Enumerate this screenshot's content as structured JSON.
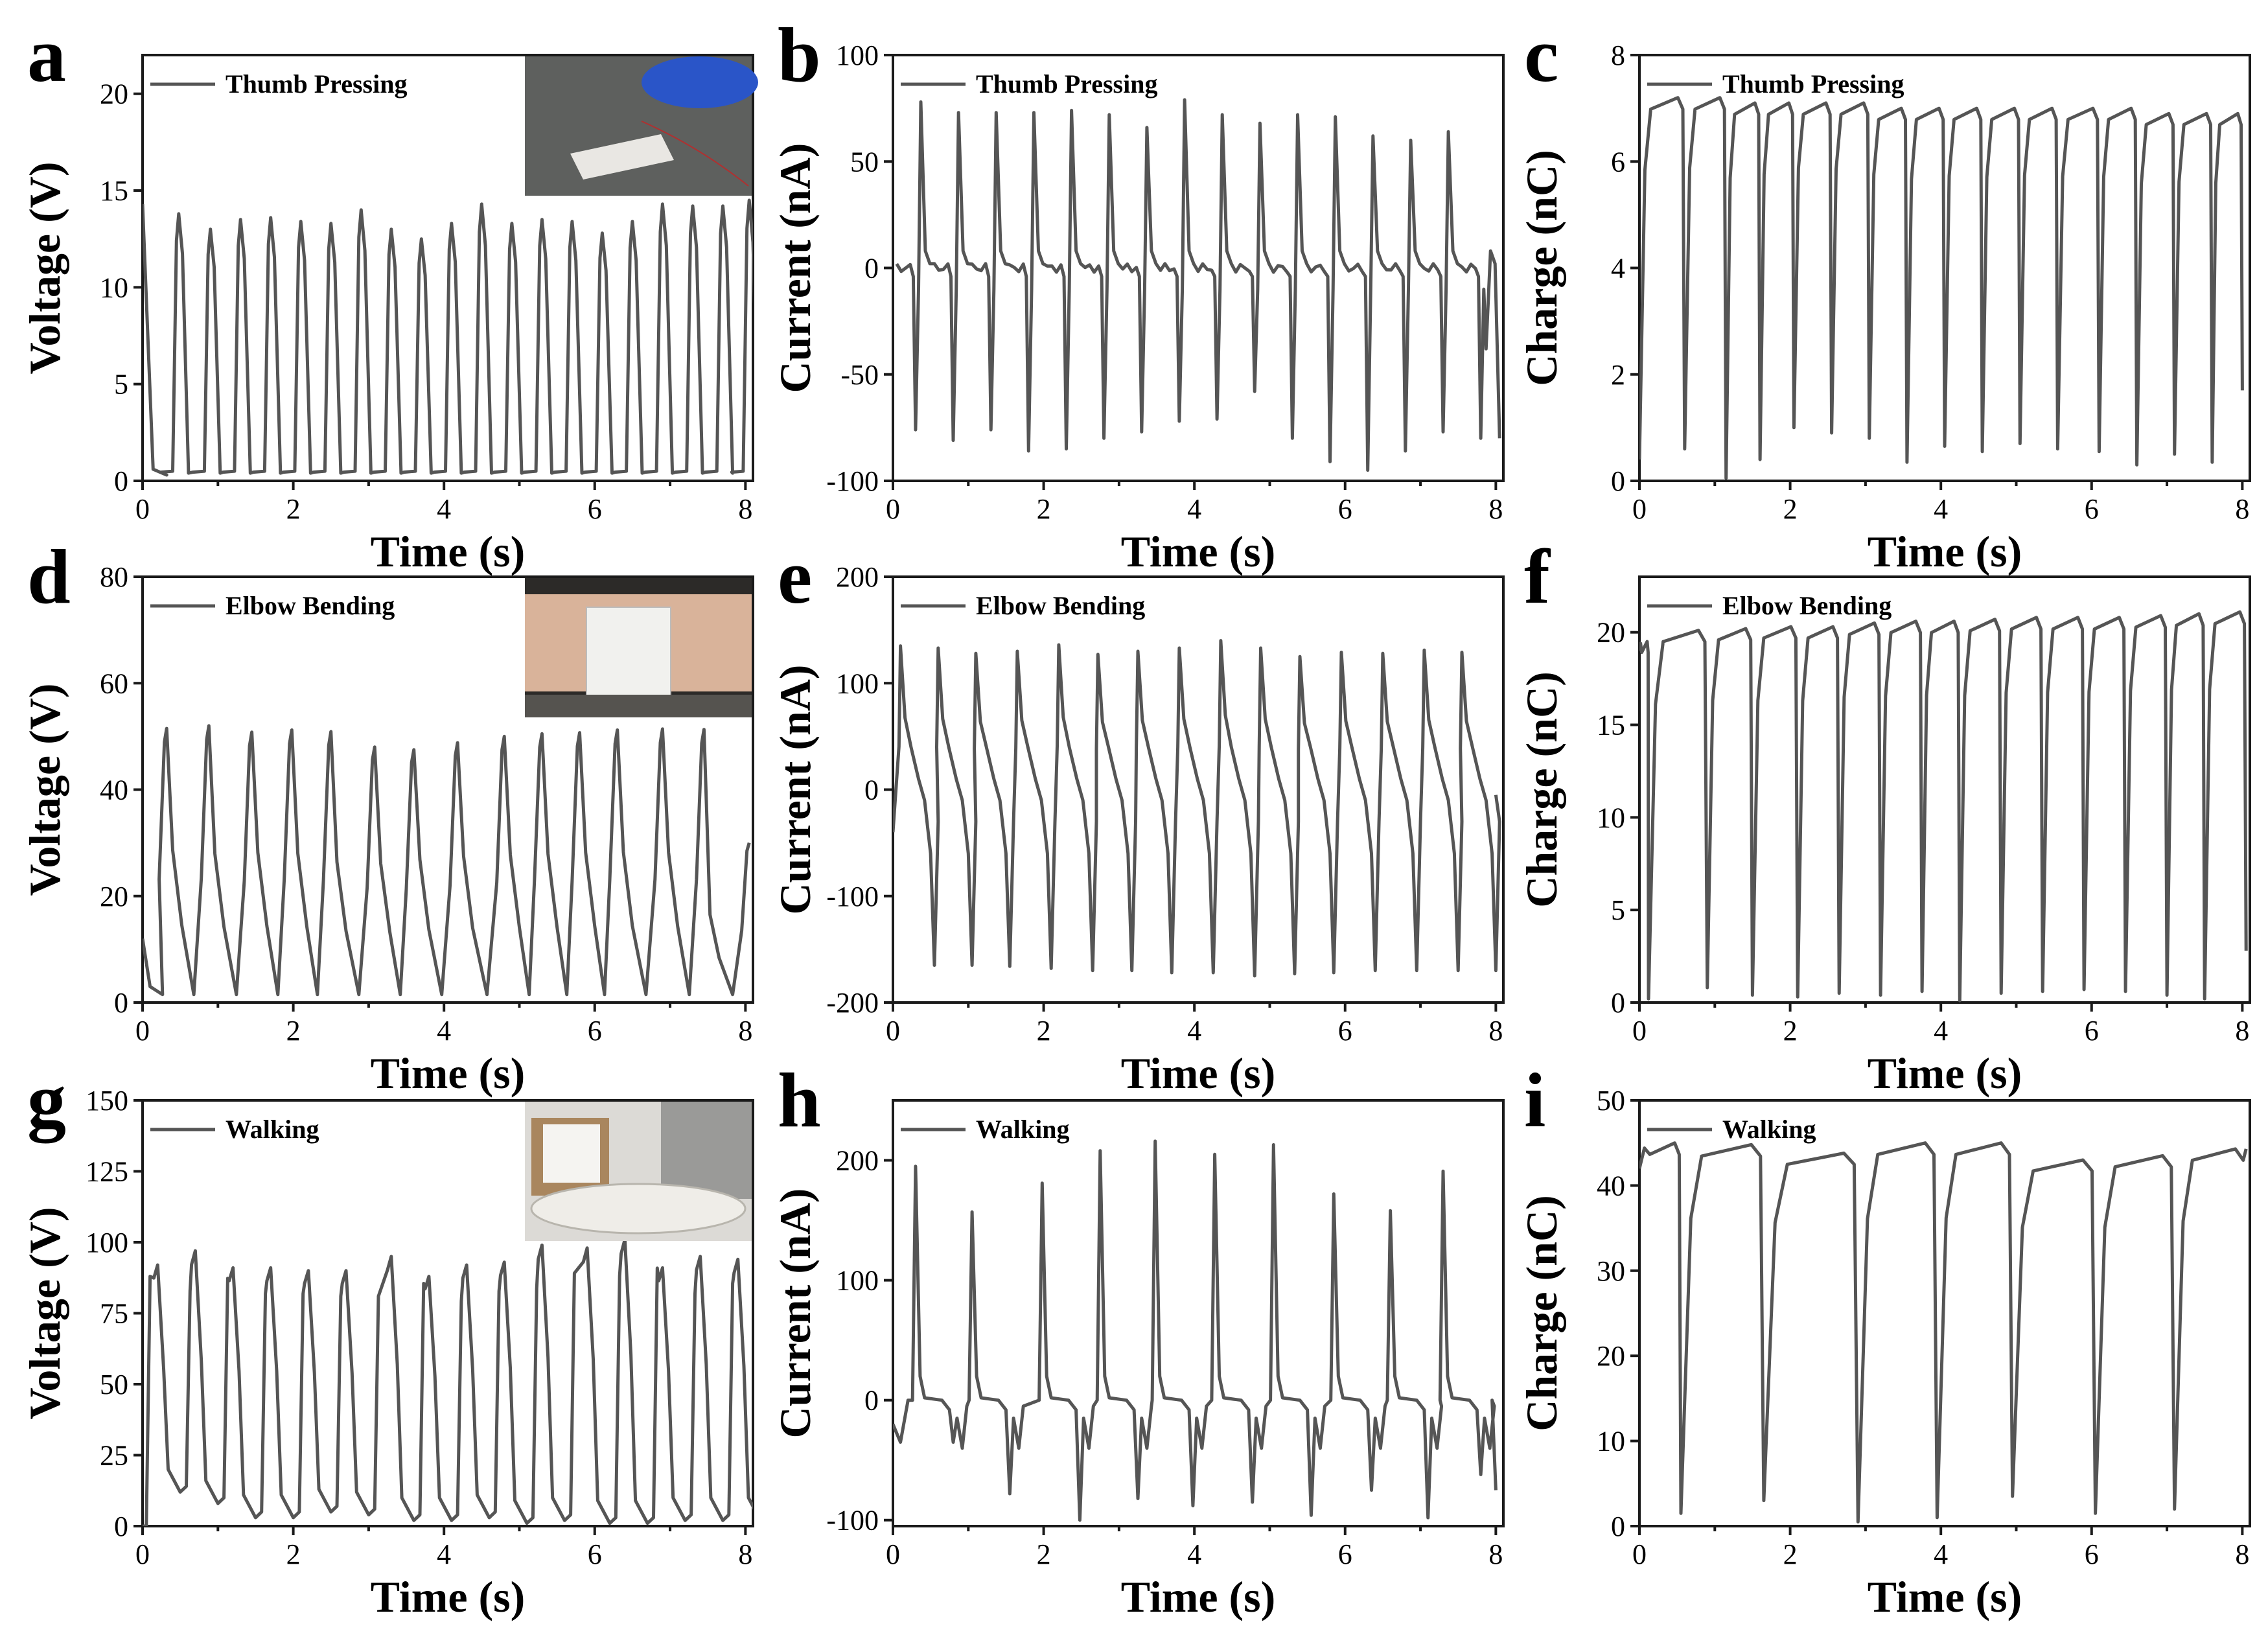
{
  "colors": {
    "series": "#555555",
    "axis": "#1a1a1a",
    "background": "#ffffff"
  },
  "chart_data": [
    {
      "panel": "a",
      "type": "line",
      "xlabel": "Time (s)",
      "ylabel": "Voltage (V)",
      "xlim": [
        0,
        8.1
      ],
      "ylim": [
        0,
        22
      ],
      "xticks": [
        0,
        2,
        4,
        6,
        8
      ],
      "yticks": [
        0,
        5,
        10,
        15,
        20
      ],
      "legend": "Thumb Pressing",
      "legend_position": "top-left",
      "inset_photo": "thumb-pressing-photo",
      "pattern": {
        "kind": "pulse",
        "baseline": 0.3,
        "duty": 0.55,
        "peaks": [
          [
            0.02,
            14.3
          ],
          [
            0.48,
            13.8
          ],
          [
            0.9,
            13.0
          ],
          [
            1.3,
            13.5
          ],
          [
            1.7,
            13.6
          ],
          [
            2.1,
            13.4
          ],
          [
            2.5,
            13.3
          ],
          [
            2.9,
            14.0
          ],
          [
            3.3,
            13.0
          ],
          [
            3.7,
            12.5
          ],
          [
            4.1,
            13.3
          ],
          [
            4.5,
            14.3
          ],
          [
            4.9,
            13.3
          ],
          [
            5.3,
            13.5
          ],
          [
            5.7,
            13.4
          ],
          [
            6.1,
            12.8
          ],
          [
            6.5,
            13.4
          ],
          [
            6.9,
            14.3
          ],
          [
            7.3,
            14.2
          ],
          [
            7.7,
            14.2
          ],
          [
            8.05,
            14.5
          ]
        ]
      }
    },
    {
      "panel": "b",
      "type": "line",
      "xlabel": "Time (s)",
      "ylabel": "Current (nA)",
      "xlim": [
        0,
        8.1
      ],
      "ylim": [
        -100,
        100
      ],
      "xticks": [
        0,
        2,
        4,
        6,
        8
      ],
      "yticks": [
        -100,
        -50,
        0,
        50,
        100
      ],
      "legend": "Thumb Pressing",
      "legend_position": "top-left",
      "pattern": {
        "kind": "spike",
        "baseline": 0,
        "events": [
          [
            0.35,
            -76,
            78
          ],
          [
            0.85,
            -81,
            73
          ],
          [
            1.35,
            -76,
            73
          ],
          [
            1.85,
            -86,
            73
          ],
          [
            2.35,
            -85,
            74
          ],
          [
            2.85,
            -80,
            72
          ],
          [
            3.35,
            -77,
            66
          ],
          [
            3.85,
            -72,
            79
          ],
          [
            4.35,
            -71,
            72
          ],
          [
            4.85,
            -58,
            68
          ],
          [
            5.35,
            -80,
            72
          ],
          [
            5.85,
            -91,
            71
          ],
          [
            6.35,
            -95,
            62
          ],
          [
            6.85,
            -86,
            60
          ],
          [
            7.35,
            -77,
            64
          ],
          [
            7.85,
            -80,
            -38
          ]
        ]
      }
    },
    {
      "panel": "c",
      "type": "line",
      "xlabel": "Time (s)",
      "ylabel": "Charge (nC)",
      "xlim": [
        0,
        8.1
      ],
      "ylim": [
        0,
        8
      ],
      "xticks": [
        0,
        2,
        4,
        6,
        8
      ],
      "yticks": [
        0,
        2,
        4,
        6,
        8
      ],
      "legend": "Thumb Pressing",
      "legend_position": "top-left",
      "pattern": {
        "kind": "sawtooth",
        "cycles": [
          [
            0.0,
            0.4,
            7.2
          ],
          [
            0.6,
            0.6,
            7.2
          ],
          [
            1.15,
            0.05,
            7.1
          ],
          [
            1.6,
            0.4,
            7.1
          ],
          [
            2.05,
            1.0,
            7.1
          ],
          [
            2.55,
            0.9,
            7.1
          ],
          [
            3.05,
            0.8,
            7.0
          ],
          [
            3.55,
            0.35,
            7.0
          ],
          [
            4.05,
            0.65,
            7.0
          ],
          [
            4.55,
            0.55,
            7.0
          ],
          [
            5.05,
            0.7,
            7.0
          ],
          [
            5.55,
            0.6,
            7.0
          ],
          [
            6.1,
            0.55,
            7.0
          ],
          [
            6.6,
            0.3,
            6.9
          ],
          [
            7.1,
            0.5,
            6.9
          ],
          [
            7.6,
            0.35,
            6.9
          ]
        ],
        "end": [
          8.0,
          1.7
        ]
      }
    },
    {
      "panel": "d",
      "type": "line",
      "xlabel": "Time (s)",
      "ylabel": "Voltage (V)",
      "xlim": [
        0,
        8.1
      ],
      "ylim": [
        0,
        80
      ],
      "xticks": [
        0,
        2,
        4,
        6,
        8
      ],
      "yticks": [
        0,
        20,
        40,
        60,
        80
      ],
      "legend": "Elbow Bending",
      "legend_position": "top-left",
      "inset_photo": "elbow-bending-photo",
      "pattern": {
        "kind": "peaks",
        "baseline": 1.5,
        "peaks": [
          [
            0.32,
            51.5
          ],
          [
            0.88,
            52.0
          ],
          [
            1.45,
            50.8
          ],
          [
            1.98,
            51.2
          ],
          [
            2.5,
            50.9
          ],
          [
            3.08,
            48.0
          ],
          [
            3.6,
            47.5
          ],
          [
            4.18,
            48.8
          ],
          [
            4.8,
            50.0
          ],
          [
            5.3,
            50.5
          ],
          [
            5.8,
            50.7
          ],
          [
            6.3,
            51.2
          ],
          [
            6.9,
            51.4
          ],
          [
            7.45,
            51.3
          ],
          [
            8.05,
            30.0
          ]
        ]
      }
    },
    {
      "panel": "e",
      "type": "line",
      "xlabel": "Time (s)",
      "ylabel": "Current (nA)",
      "xlim": [
        0,
        8.1
      ],
      "ylim": [
        -200,
        200
      ],
      "xticks": [
        0,
        2,
        4,
        6,
        8
      ],
      "yticks": [
        -200,
        -100,
        0,
        100,
        200
      ],
      "legend": "Elbow Bending",
      "legend_position": "top-left",
      "pattern": {
        "kind": "asym-spike",
        "baseline": 0,
        "events": [
          [
            0.1,
            135,
            -165
          ],
          [
            0.6,
            133,
            -165
          ],
          [
            1.1,
            128,
            -166
          ],
          [
            1.65,
            130,
            -168
          ],
          [
            2.2,
            136,
            -170
          ],
          [
            2.72,
            127,
            -170
          ],
          [
            3.25,
            130,
            -172
          ],
          [
            3.8,
            133,
            -172
          ],
          [
            4.35,
            140,
            -175
          ],
          [
            4.88,
            133,
            -173
          ],
          [
            5.4,
            125,
            -172
          ],
          [
            5.95,
            129,
            -170
          ],
          [
            6.5,
            128,
            -170
          ],
          [
            7.05,
            131,
            -170
          ],
          [
            7.55,
            129,
            -170
          ]
        ],
        "end": [
          8.0,
          -5
        ]
      }
    },
    {
      "panel": "f",
      "type": "line",
      "xlabel": "Time (s)",
      "ylabel": "Charge (nC)",
      "xlim": [
        0,
        8.1
      ],
      "ylim": [
        0,
        23
      ],
      "xticks": [
        0,
        2,
        4,
        6,
        8
      ],
      "yticks": [
        0,
        5,
        10,
        15,
        20
      ],
      "legend": "Elbow Bending",
      "legend_position": "top-left",
      "pattern": {
        "kind": "sawtooth",
        "cycles": [
          [
            0.0,
            19.0,
            19.5
          ],
          [
            0.12,
            0.2,
            20.1
          ],
          [
            0.9,
            0.8,
            20.2
          ],
          [
            1.5,
            0.4,
            20.3
          ],
          [
            2.1,
            0.3,
            20.3
          ],
          [
            2.65,
            0.5,
            20.5
          ],
          [
            3.2,
            0.4,
            20.6
          ],
          [
            3.75,
            0.6,
            20.6
          ],
          [
            4.25,
            0.1,
            20.7
          ],
          [
            4.8,
            0.5,
            20.8
          ],
          [
            5.35,
            0.6,
            20.8
          ],
          [
            5.9,
            0.7,
            20.8
          ],
          [
            6.45,
            0.6,
            20.9
          ],
          [
            7.0,
            0.4,
            21.0
          ],
          [
            7.5,
            0.2,
            21.1
          ]
        ],
        "end": [
          8.05,
          2.8
        ]
      }
    },
    {
      "panel": "g",
      "type": "line",
      "xlabel": "Time (s)",
      "ylabel": "Voltage (V)",
      "xlim": [
        0,
        8.1
      ],
      "ylim": [
        0,
        150
      ],
      "xticks": [
        0,
        2,
        4,
        6,
        8
      ],
      "yticks": [
        0,
        25,
        50,
        75,
        100,
        125,
        150
      ],
      "legend": "Walking",
      "legend_position": "top-left",
      "inset_photo": "walking-shoe-photo",
      "pattern": {
        "kind": "pulse-dip",
        "cycles": [
          [
            0.2,
            92,
            12
          ],
          [
            0.7,
            97,
            8
          ],
          [
            1.2,
            91,
            3
          ],
          [
            1.7,
            91,
            3
          ],
          [
            2.2,
            90,
            5
          ],
          [
            2.7,
            90,
            4
          ],
          [
            3.3,
            95,
            2
          ],
          [
            3.8,
            88,
            2
          ],
          [
            4.3,
            92,
            3
          ],
          [
            4.8,
            93,
            1
          ],
          [
            5.3,
            99,
            2
          ],
          [
            5.9,
            98,
            1
          ],
          [
            6.4,
            101,
            1
          ],
          [
            6.9,
            91,
            2
          ],
          [
            7.4,
            95,
            2
          ],
          [
            7.9,
            94,
            2
          ]
        ]
      }
    },
    {
      "panel": "h",
      "type": "line",
      "xlabel": "Time (s)",
      "ylabel": "Current (nA)",
      "xlim": [
        0,
        8.1
      ],
      "ylim": [
        -105,
        250
      ],
      "xticks": [
        0,
        2,
        4,
        6,
        8
      ],
      "yticks": [
        -100,
        0,
        100,
        200
      ],
      "legend": "Walking",
      "legend_position": "top-left",
      "pattern": {
        "kind": "double-spike",
        "baseline": 0,
        "events": [
          [
            0.3,
            195,
            -35
          ],
          [
            1.05,
            157,
            -78
          ],
          [
            1.98,
            181,
            -100
          ],
          [
            2.75,
            208,
            -82
          ],
          [
            3.48,
            216,
            -88
          ],
          [
            4.27,
            205,
            -85
          ],
          [
            5.05,
            213,
            -96
          ],
          [
            5.85,
            172,
            -75
          ],
          [
            6.6,
            158,
            -98
          ],
          [
            7.3,
            191,
            -62
          ]
        ],
        "end": [
          8.0,
          -75
        ]
      }
    },
    {
      "panel": "i",
      "type": "line",
      "xlabel": "Time (s)",
      "ylabel": "Charge (nC)",
      "xlim": [
        0,
        8.1
      ],
      "ylim": [
        0,
        50
      ],
      "xticks": [
        0,
        2,
        4,
        6,
        8
      ],
      "yticks": [
        0,
        10,
        20,
        30,
        40,
        50
      ],
      "legend": "Walking",
      "legend_position": "top-left",
      "pattern": {
        "kind": "sawtooth",
        "cycles": [
          [
            0.0,
            42.0,
            45.0
          ],
          [
            0.55,
            1.5,
            44.8
          ],
          [
            1.65,
            3.0,
            43.8
          ],
          [
            2.9,
            0.5,
            45.0
          ],
          [
            3.95,
            1.0,
            45.0
          ],
          [
            4.95,
            3.5,
            43.0
          ],
          [
            6.05,
            1.5,
            43.5
          ],
          [
            7.1,
            2.0,
            44.3
          ]
        ],
        "end": [
          8.05,
          44.3
        ]
      }
    }
  ]
}
